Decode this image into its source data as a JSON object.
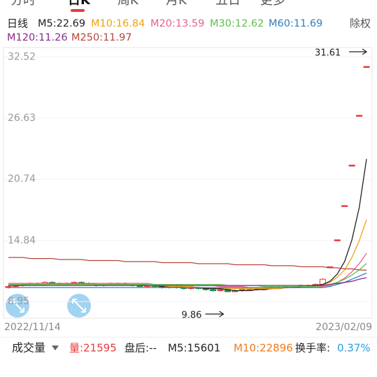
{
  "tabs": [
    "分时",
    "日K",
    "周K",
    "月K",
    "五日",
    "更多"
  ],
  "selected_tab": 1,
  "period": "日线",
  "adjust": "除权",
  "volume_bar": {
    "label": "成交量",
    "volume": "量:21595",
    "after_hours": "盘后:--",
    "m5": "M5:15601",
    "m10": "M10:22896",
    "turnover_label": "换手率:",
    "turnover": "0.37%"
  },
  "chart_data": {
    "type": "candlestick",
    "categories": [
      "2022/11/14",
      null,
      null,
      null,
      null,
      null,
      null,
      null,
      null,
      null,
      null,
      null,
      null,
      null,
      null,
      null,
      null,
      null,
      null,
      null,
      null,
      null,
      null,
      null,
      null,
      null,
      null,
      null,
      null,
      null,
      null,
      null,
      null,
      null,
      null,
      null,
      null,
      null,
      null,
      null,
      null,
      null,
      null,
      null,
      null,
      null,
      null,
      null,
      null,
      "2023/02/09"
    ],
    "open": [
      10.3,
      10.4,
      10.5,
      10.6,
      10.7,
      10.6,
      10.8,
      10.7,
      10.6,
      10.7,
      10.8,
      10.7,
      10.6,
      10.5,
      10.6,
      10.7,
      10.7,
      10.6,
      10.5,
      10.4,
      10.5,
      10.4,
      10.3,
      10.4,
      10.3,
      10.2,
      10.3,
      10.2,
      10.1,
      10.0,
      10.1,
      9.9,
      10.0,
      10.1,
      10.1,
      10.2,
      10.2,
      10.3,
      10.3,
      10.4,
      10.4,
      10.5,
      10.5,
      10.6,
      12.3,
      14.9,
      18.2,
      22.1,
      26.9,
      31.61
    ],
    "close": [
      10.4,
      10.5,
      10.6,
      10.7,
      10.6,
      10.8,
      10.7,
      10.6,
      10.7,
      10.8,
      10.7,
      10.6,
      10.5,
      10.6,
      10.7,
      10.7,
      10.6,
      10.5,
      10.4,
      10.5,
      10.4,
      10.3,
      10.4,
      10.3,
      10.2,
      10.3,
      10.2,
      10.1,
      10.0,
      10.1,
      9.9,
      10.0,
      10.1,
      10.1,
      10.2,
      10.2,
      10.3,
      10.3,
      10.4,
      10.4,
      10.5,
      10.5,
      10.6,
      11.1,
      12.3,
      14.9,
      18.2,
      22.1,
      26.9,
      31.61
    ],
    "high": [
      10.5,
      10.6,
      10.7,
      10.8,
      10.8,
      10.9,
      10.9,
      10.8,
      10.8,
      10.9,
      10.9,
      10.8,
      10.7,
      10.7,
      10.8,
      10.8,
      10.8,
      10.7,
      10.6,
      10.6,
      10.6,
      10.5,
      10.5,
      10.5,
      10.4,
      10.4,
      10.4,
      10.3,
      10.2,
      10.2,
      10.2,
      10.1,
      10.2,
      10.2,
      10.3,
      10.3,
      10.4,
      10.4,
      10.5,
      10.5,
      10.6,
      10.6,
      10.7,
      11.2,
      12.3,
      14.9,
      18.2,
      22.1,
      26.9,
      31.61
    ],
    "low": [
      10.2,
      10.3,
      10.4,
      10.5,
      10.5,
      10.5,
      10.6,
      10.5,
      10.5,
      10.6,
      10.6,
      10.5,
      10.4,
      10.4,
      10.5,
      10.6,
      10.5,
      10.4,
      10.3,
      10.3,
      10.3,
      10.2,
      10.2,
      10.2,
      10.1,
      10.1,
      10.1,
      10.0,
      9.9,
      9.9,
      9.86,
      9.9,
      9.9,
      10.0,
      10.0,
      10.1,
      10.1,
      10.2,
      10.2,
      10.3,
      10.3,
      10.4,
      10.4,
      10.5,
      12.3,
      14.9,
      18.2,
      22.1,
      26.9,
      31.61
    ],
    "up_color": "#e8383d",
    "down_color": "#1e8a3a",
    "series": [
      {
        "label": "M5:22.69",
        "color": "#222222",
        "values": [
          10.5,
          10.5,
          10.5,
          10.6,
          10.6,
          10.6,
          10.7,
          10.7,
          10.7,
          10.7,
          10.7,
          10.7,
          10.6,
          10.6,
          10.6,
          10.6,
          10.6,
          10.6,
          10.6,
          10.5,
          10.5,
          10.4,
          10.4,
          10.4,
          10.3,
          10.3,
          10.3,
          10.2,
          10.2,
          10.2,
          10.1,
          10.0,
          10.0,
          10.0,
          10.1,
          10.1,
          10.2,
          10.2,
          10.3,
          10.3,
          10.4,
          10.4,
          10.5,
          10.6,
          10.9,
          11.6,
          12.8,
          14.9,
          18.0,
          22.69
        ]
      },
      {
        "label": "M10:16.84",
        "color": "#f0a30a",
        "values": [
          10.6,
          10.6,
          10.6,
          10.6,
          10.6,
          10.6,
          10.6,
          10.6,
          10.6,
          10.6,
          10.6,
          10.6,
          10.6,
          10.6,
          10.6,
          10.6,
          10.6,
          10.6,
          10.5,
          10.5,
          10.5,
          10.5,
          10.4,
          10.4,
          10.4,
          10.4,
          10.3,
          10.3,
          10.3,
          10.3,
          10.2,
          10.2,
          10.2,
          10.2,
          10.2,
          10.2,
          10.2,
          10.2,
          10.3,
          10.3,
          10.3,
          10.4,
          10.4,
          10.5,
          10.8,
          11.3,
          12.0,
          13.2,
          14.8,
          16.84
        ]
      },
      {
        "label": "M20:13.59",
        "color": "#ec5f8a",
        "values": [
          10.7,
          10.7,
          10.7,
          10.7,
          10.7,
          10.7,
          10.7,
          10.7,
          10.7,
          10.7,
          10.7,
          10.7,
          10.7,
          10.7,
          10.7,
          10.7,
          10.7,
          10.7,
          10.7,
          10.7,
          10.6,
          10.6,
          10.6,
          10.6,
          10.5,
          10.5,
          10.5,
          10.5,
          10.5,
          10.4,
          10.4,
          10.4,
          10.4,
          10.3,
          10.3,
          10.3,
          10.3,
          10.3,
          10.3,
          10.3,
          10.3,
          10.3,
          10.3,
          10.4,
          10.5,
          10.8,
          11.2,
          11.8,
          12.6,
          13.59
        ]
      },
      {
        "label": "M30:12.62",
        "color": "#5cc04c",
        "values": [
          10.6,
          10.6,
          10.6,
          10.6,
          10.6,
          10.6,
          10.6,
          10.6,
          10.6,
          10.6,
          10.6,
          10.6,
          10.6,
          10.6,
          10.6,
          10.6,
          10.6,
          10.6,
          10.6,
          10.6,
          10.6,
          10.6,
          10.6,
          10.6,
          10.6,
          10.6,
          10.6,
          10.6,
          10.6,
          10.6,
          10.5,
          10.5,
          10.5,
          10.5,
          10.5,
          10.4,
          10.4,
          10.4,
          10.4,
          10.4,
          10.4,
          10.4,
          10.4,
          10.5,
          10.6,
          10.8,
          11.1,
          11.5,
          12.0,
          12.62
        ]
      },
      {
        "label": "M60:11.69",
        "color": "#2f7fc1",
        "values": [
          10.3,
          10.3,
          10.3,
          10.3,
          10.3,
          10.3,
          10.3,
          10.3,
          10.3,
          10.3,
          10.3,
          10.3,
          10.3,
          10.3,
          10.3,
          10.3,
          10.3,
          10.3,
          10.3,
          10.3,
          10.3,
          10.3,
          10.3,
          10.3,
          10.3,
          10.3,
          10.3,
          10.3,
          10.3,
          10.3,
          10.3,
          10.3,
          10.3,
          10.3,
          10.3,
          10.3,
          10.3,
          10.3,
          10.3,
          10.3,
          10.3,
          10.3,
          10.3,
          10.3,
          10.4,
          10.6,
          10.8,
          11.1,
          11.4,
          11.69
        ]
      },
      {
        "label": "M120:11.26",
        "color": "#8a2b8c",
        "values": [
          10.5,
          10.5,
          10.5,
          10.5,
          10.5,
          10.5,
          10.5,
          10.5,
          10.5,
          10.5,
          10.5,
          10.5,
          10.5,
          10.5,
          10.5,
          10.5,
          10.5,
          10.5,
          10.5,
          10.5,
          10.5,
          10.5,
          10.5,
          10.5,
          10.5,
          10.5,
          10.5,
          10.5,
          10.5,
          10.5,
          10.5,
          10.5,
          10.5,
          10.5,
          10.5,
          10.5,
          10.5,
          10.5,
          10.5,
          10.5,
          10.5,
          10.5,
          10.5,
          10.5,
          10.6,
          10.7,
          10.8,
          10.9,
          11.1,
          11.26
        ]
      },
      {
        "label": "M250:11.97",
        "color": "#b5473a",
        "values": [
          13.2,
          13.2,
          13.2,
          13.1,
          13.1,
          13.1,
          13.1,
          13.0,
          13.0,
          13.0,
          13.0,
          12.9,
          12.9,
          12.9,
          12.9,
          12.9,
          12.8,
          12.8,
          12.8,
          12.8,
          12.8,
          12.7,
          12.7,
          12.7,
          12.7,
          12.7,
          12.6,
          12.6,
          12.6,
          12.6,
          12.6,
          12.5,
          12.5,
          12.5,
          12.5,
          12.5,
          12.4,
          12.4,
          12.4,
          12.4,
          12.3,
          12.3,
          12.3,
          12.3,
          12.2,
          12.2,
          12.1,
          12.1,
          12.0,
          11.97
        ]
      }
    ],
    "ylim": [
      7.34,
      33.43
    ],
    "yticks": [
      32.52,
      26.63,
      20.74,
      14.84,
      8.95
    ],
    "annotations": [
      {
        "value": 31.61,
        "category": 49
      },
      {
        "value": 9.86,
        "category": 30
      }
    ]
  }
}
